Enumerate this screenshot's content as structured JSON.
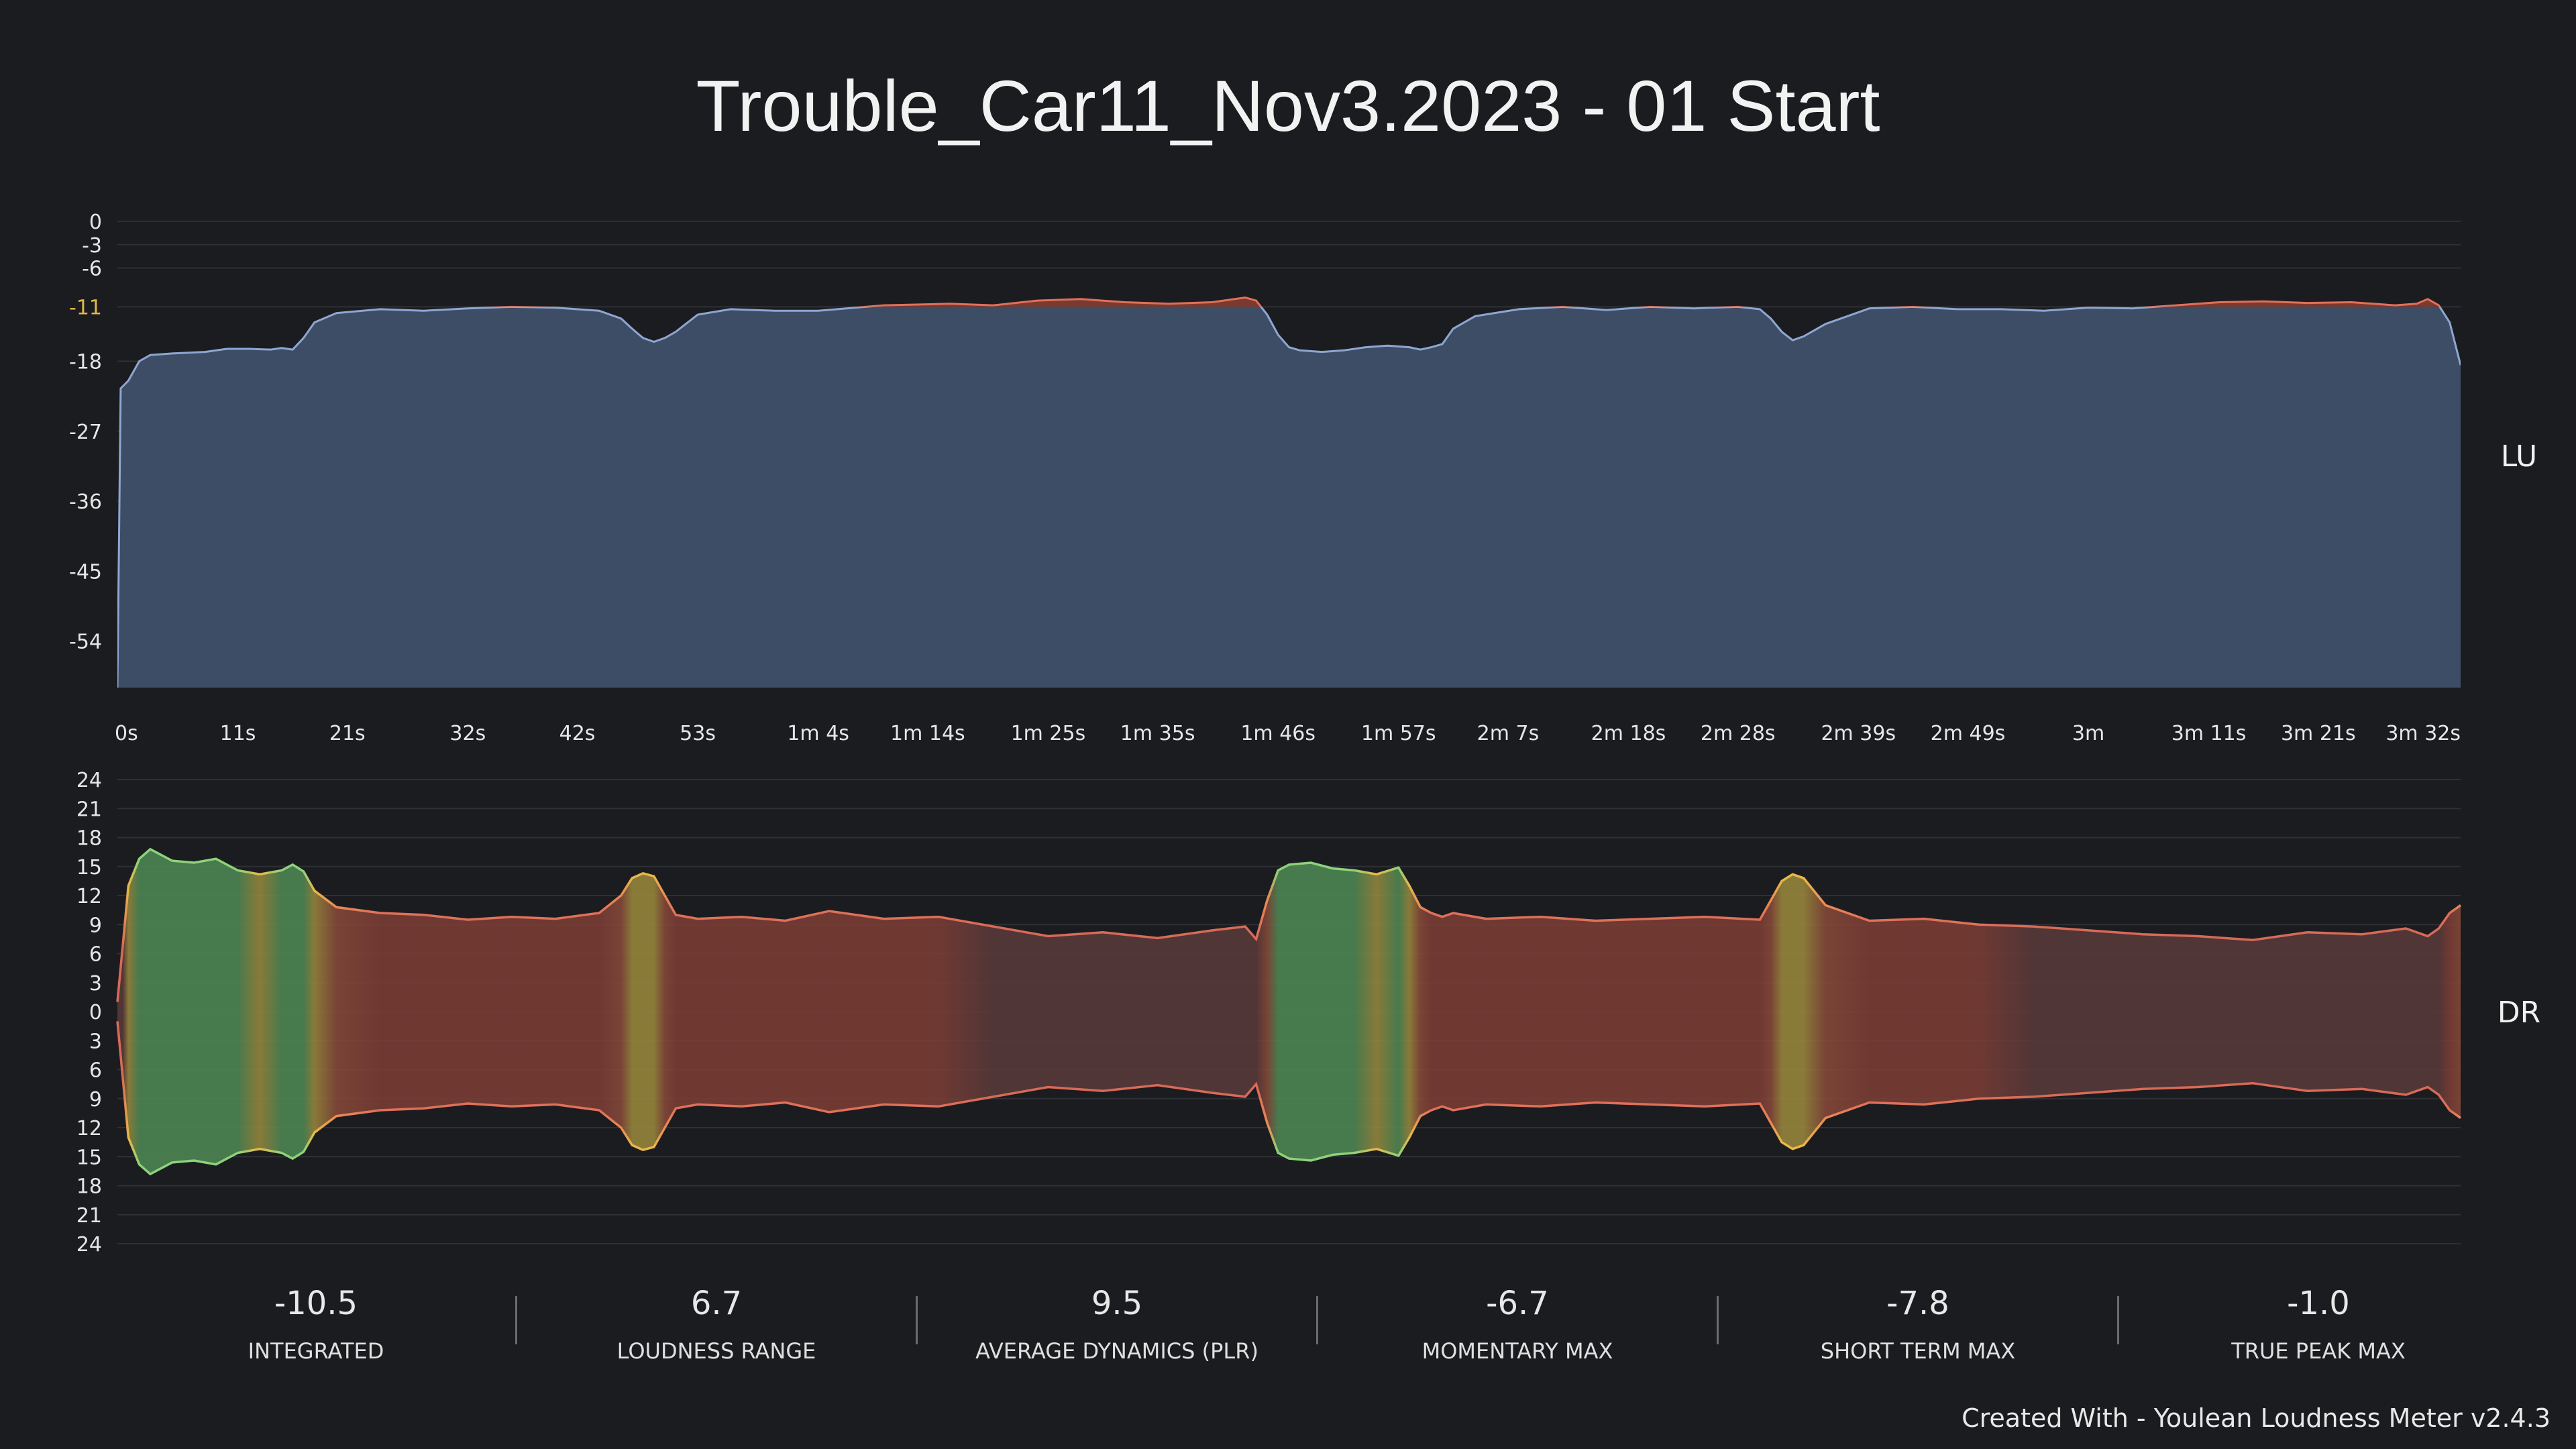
{
  "title": "Trouble_Car11_Nov3.2023 - 01 Start",
  "credit": "Created With - Youlean Loudness Meter v2.4.3",
  "chart_data": [
    {
      "type": "area",
      "side_label": "LU",
      "y_ticks": [
        "0",
        "-3",
        "-6",
        "-11",
        "-18",
        "-27",
        "-36",
        "-45",
        "-54"
      ],
      "y_tick_values": [
        0,
        -3,
        -6,
        -11,
        -18,
        -27,
        -36,
        -45,
        -54
      ],
      "target_level": -11,
      "ylim": [
        -60,
        0
      ],
      "x_ticks": [
        "0s",
        "11s",
        "21s",
        "32s",
        "42s",
        "53s",
        "1m 4s",
        "1m 14s",
        "1m 25s",
        "1m 35s",
        "1m 46s",
        "1m 57s",
        "2m 7s",
        "2m 18s",
        "2m 28s",
        "2m 39s",
        "2m 49s",
        "3m",
        "3m 11s",
        "3m 21s",
        "3m 32s"
      ],
      "x_tick_seconds": [
        0,
        11,
        21,
        32,
        42,
        53,
        64,
        74,
        85,
        95,
        106,
        117,
        127,
        138,
        148,
        159,
        169,
        180,
        191,
        201,
        212
      ],
      "xlim": [
        0,
        214
      ],
      "series": [
        {
          "x": [
            0,
            0.3,
            1,
            2,
            3,
            5,
            8,
            10,
            12,
            14,
            15,
            16,
            17,
            18,
            20,
            24,
            28,
            32,
            36,
            40,
            44,
            46,
            47,
            48,
            49,
            50,
            51,
            53,
            56,
            60,
            64,
            70,
            76,
            80,
            84,
            88,
            92,
            96,
            100,
            103,
            104,
            105,
            106,
            107,
            108,
            110,
            112,
            114,
            116,
            118,
            119,
            120,
            121,
            122,
            124,
            128,
            132,
            136,
            140,
            144,
            148,
            150,
            151,
            152,
            153,
            154,
            156,
            160,
            164,
            168,
            172,
            176,
            180,
            184,
            188,
            192,
            196,
            200,
            204,
            208,
            210,
            211,
            212,
            213,
            214
          ],
          "values": [
            -60,
            -21.5,
            -20.5,
            -18.0,
            -17.2,
            -17.0,
            -16.8,
            -16.4,
            -16.4,
            -16.5,
            -16.3,
            -16.5,
            -15.0,
            -13.0,
            -11.8,
            -11.3,
            -11.5,
            -11.2,
            -11.0,
            -11.1,
            -11.5,
            -12.5,
            -13.8,
            -15.0,
            -15.5,
            -15.0,
            -14.2,
            -12.0,
            -11.3,
            -11.5,
            -11.5,
            -10.8,
            -10.6,
            -10.8,
            -10.2,
            -10.0,
            -10.4,
            -10.6,
            -10.4,
            -9.8,
            -10.2,
            -12.0,
            -14.6,
            -16.2,
            -16.6,
            -16.8,
            -16.6,
            -16.2,
            -16.0,
            -16.2,
            -16.5,
            -16.2,
            -15.8,
            -13.8,
            -12.2,
            -11.3,
            -11.0,
            -11.4,
            -11.0,
            -11.2,
            -11.0,
            -11.3,
            -12.5,
            -14.2,
            -15.3,
            -14.8,
            -13.2,
            -11.2,
            -11.0,
            -11.3,
            -11.3,
            -11.5,
            -11.1,
            -11.2,
            -10.8,
            -10.4,
            -10.3,
            -10.5,
            -10.4,
            -10.8,
            -10.6,
            -10.0,
            -10.8,
            -13.0,
            -18.5
          ]
        }
      ]
    },
    {
      "type": "area",
      "side_label": "DR",
      "y_ticks": [
        "24",
        "21",
        "18",
        "15",
        "12",
        "9",
        "6",
        "3",
        "0",
        "3",
        "6",
        "9",
        "12",
        "15",
        "18",
        "21",
        "24"
      ],
      "y_tick_values": [
        24,
        21,
        18,
        15,
        12,
        9,
        6,
        3,
        0,
        -3,
        -6,
        -9,
        -12,
        -15,
        -18,
        -21,
        -24
      ],
      "ylim": [
        -24,
        24
      ],
      "xlim": [
        0,
        214
      ],
      "series": [
        {
          "x": [
            0,
            0.5,
            1,
            2,
            3,
            5,
            7,
            9,
            11,
            13,
            15,
            16,
            17,
            18,
            20,
            24,
            28,
            32,
            36,
            40,
            44,
            46,
            47,
            48,
            49,
            50,
            51,
            53,
            57,
            61,
            65,
            70,
            75,
            80,
            85,
            90,
            95,
            100,
            103,
            104,
            105,
            106,
            107,
            109,
            111,
            113,
            115,
            117,
            118,
            119,
            120,
            121,
            122,
            125,
            130,
            135,
            140,
            145,
            150,
            151,
            152,
            153,
            154,
            156,
            160,
            165,
            170,
            175,
            180,
            185,
            190,
            195,
            200,
            205,
            209,
            211,
            212,
            213,
            214
          ],
          "values": [
            1.0,
            7.0,
            13.0,
            15.8,
            16.8,
            15.6,
            15.4,
            15.8,
            14.6,
            14.2,
            14.6,
            15.2,
            14.5,
            12.5,
            10.8,
            10.2,
            10.0,
            9.5,
            9.8,
            9.6,
            10.2,
            12.0,
            13.8,
            14.3,
            14.0,
            12.0,
            10.0,
            9.6,
            9.8,
            9.4,
            10.4,
            9.6,
            9.8,
            8.8,
            7.8,
            8.2,
            7.6,
            8.4,
            8.8,
            7.5,
            11.5,
            14.6,
            15.2,
            15.4,
            14.8,
            14.6,
            14.2,
            14.9,
            13.0,
            10.8,
            10.2,
            9.8,
            10.2,
            9.6,
            9.8,
            9.4,
            9.6,
            9.8,
            9.5,
            11.5,
            13.5,
            14.2,
            13.8,
            11.0,
            9.4,
            9.6,
            9.0,
            8.8,
            8.4,
            8.0,
            7.8,
            7.4,
            8.2,
            8.0,
            8.6,
            7.8,
            8.6,
            10.2,
            11.0
          ],
          "band_color_legend": "green = high dynamic range, yellow = medium, red = low"
        }
      ]
    }
  ],
  "stats": [
    {
      "value": "-10.5",
      "label": "INTEGRATED"
    },
    {
      "value": "6.7",
      "label": "LOUDNESS RANGE"
    },
    {
      "value": "9.5",
      "label": "AVERAGE DYNAMICS (PLR)"
    },
    {
      "value": "-6.7",
      "label": "MOMENTARY MAX"
    },
    {
      "value": "-7.8",
      "label": "SHORT TERM MAX"
    },
    {
      "value": "-1.0",
      "label": "TRUE PEAK MAX"
    }
  ],
  "colors": {
    "background": "#1b1c1f",
    "loudness_fill": "#3e4d66",
    "loudness_line": "#8ea6d2",
    "over_target_fill": "#7a3a32",
    "over_target_line": "#e0705a",
    "target_tick": "#e6b84a",
    "dr_high": "#4f8a4e",
    "dr_mid": "#c8a33a",
    "dr_low": "#a8473c"
  }
}
